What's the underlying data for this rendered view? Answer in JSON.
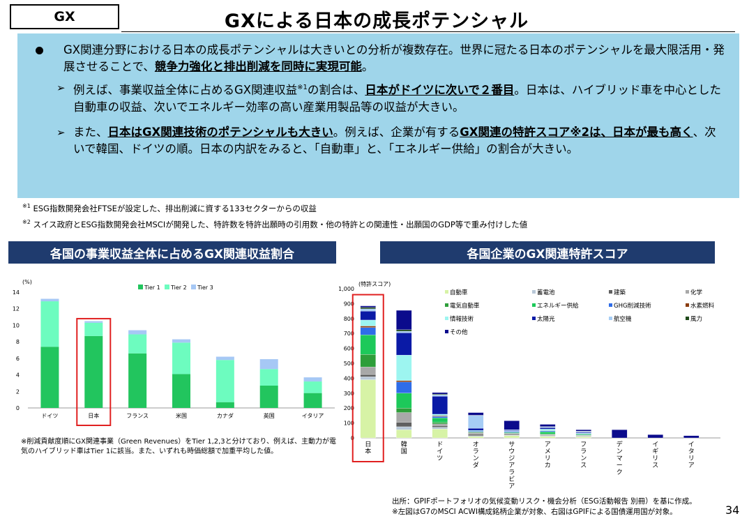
{
  "tag": "GX",
  "title": "GXによる日本の成長ポテンシャル",
  "summary": {
    "bullet": {
      "pre": "GX関連分野における日本の成長ポテンシャルは大きいとの分析が複数存在。世界に冠たる日本のポテンシャルを最大限活用・発展させることで、",
      "em": "競争力強化と排出削減を同時に実現可能",
      "post": "。"
    },
    "sub1": {
      "pre": "例えば、事業収益全体に占めるGX関連収益",
      "sup": "※1",
      "mid": "の割合は、",
      "em": "日本がドイツに次いで２番目",
      "post": "。日本は、ハイブリッド車を中心とした自動車の収益、次いでエネルギー効率の高い産業用製品等の収益が大きい。"
    },
    "sub2": {
      "pre": "また、",
      "em1": "日本はGX関連技術のポテンシャルも大きい",
      "mid": "。例えば、企業が有する",
      "em2": "GX関連の特許スコア※2は、日本が最も高く",
      "post": "、次いで韓国、ドイツの順。日本の内訳をみると、「自動車」と、「エネルギー供給」の割合が大きい。"
    }
  },
  "footnotes": {
    "fn1_mark": "※1",
    "fn1": "ESG指数開発会社FTSEが設定した、排出削減に資する133セクターからの収益",
    "fn2_mark": "※2",
    "fn2": "スイス政府とESG指数開発会社MSCIが開発した、特許数を特許出願時の引用数・他の特許との関連性・出願国のGDP等で重み付けした値"
  },
  "left_header": "各国の事業収益全体に占めるGX関連収益割合",
  "right_header": "各国企業のGX関連特許スコア",
  "left_note": "※削減貢献度順にGX関連事業（Green Revenues）をTier 1,2,3と分けており、例えば、主動力が電気のハイブリッド車はTier 1に該当。また、いずれも時価総額で加重平均した値。",
  "source": {
    "line1": "出所：GPIFポートフォリオの気候変動リスク・機会分析（ESG活動報告 別冊）を基に作成。",
    "line2": "※左図はG7のMSCI ACWI構成銘柄企業が対象、右図はGPIFによる国債運用国が対象。"
  },
  "page_number": "34",
  "chart_data": [
    {
      "type": "bar",
      "stacked": true,
      "ylabel": "(%)",
      "ylim": [
        0,
        14
      ],
      "yticks": [
        0,
        2,
        4,
        6,
        8,
        10,
        12,
        14
      ],
      "categories": [
        "ドイツ",
        "日本",
        "フランス",
        "米国",
        "カナダ",
        "英国",
        "イタリア"
      ],
      "highlight_category": "日本",
      "legend_position": "top",
      "series": [
        {
          "name": "Tier 1",
          "color": "#22c55e",
          "values": [
            7.4,
            8.7,
            6.6,
            4.1,
            0.7,
            2.7,
            1.8
          ]
        },
        {
          "name": "Tier 2",
          "color": "#6dfcbf",
          "values": [
            5.5,
            1.6,
            2.3,
            3.8,
            5.1,
            2.0,
            1.4
          ]
        },
        {
          "name": "Tier 3",
          "color": "#a6c8f5",
          "values": [
            0.3,
            0.2,
            0.5,
            0.4,
            0.4,
            1.2,
            0.5
          ]
        }
      ]
    },
    {
      "type": "bar",
      "stacked": true,
      "ylabel": "(特許スコア)",
      "ylim": [
        0,
        1000
      ],
      "yticks": [
        0,
        100,
        200,
        300,
        400,
        500,
        600,
        700,
        800,
        900,
        1000
      ],
      "ytick_labels": [
        "0",
        "100",
        "200",
        "300",
        "400",
        "500",
        "600",
        "700",
        "800",
        "900",
        "1,000"
      ],
      "categories": [
        "日本",
        "韓国",
        "ドイツ",
        "オランダ",
        "サウジアラビア",
        "アメリカ",
        "フランス",
        "デンマーク",
        "イギリス",
        "イタリア"
      ],
      "highlight_category": "日本",
      "legend_position": "top-right",
      "series": [
        {
          "name": "自動車",
          "color": "#d7f3a6",
          "values": [
            390,
            55,
            60,
            10,
            15,
            10,
            8,
            0,
            0,
            0
          ]
        },
        {
          "name": "蓄電池",
          "color": "#b8c8d8",
          "values": [
            20,
            20,
            12,
            5,
            3,
            4,
            3,
            0,
            0,
            0
          ]
        },
        {
          "name": "建築",
          "color": "#606060",
          "values": [
            15,
            30,
            10,
            10,
            5,
            3,
            3,
            0,
            0,
            0
          ]
        },
        {
          "name": "化学",
          "color": "#a8a8a8",
          "values": [
            50,
            65,
            12,
            10,
            8,
            6,
            4,
            0,
            0,
            0
          ]
        },
        {
          "name": "電気自動車",
          "color": "#2e9e3a",
          "values": [
            85,
            30,
            10,
            5,
            0,
            3,
            2,
            0,
            0,
            0
          ]
        },
        {
          "name": "エネルギー供給",
          "color": "#1dc95a",
          "values": [
            130,
            100,
            30,
            0,
            6,
            15,
            6,
            0,
            0,
            0
          ]
        },
        {
          "name": "GHG削減技術",
          "color": "#2f6de8",
          "values": [
            50,
            75,
            10,
            5,
            5,
            6,
            4,
            0,
            0,
            0
          ]
        },
        {
          "name": "水素燃料",
          "color": "#8a3d10",
          "values": [
            10,
            10,
            5,
            0,
            0,
            2,
            0,
            0,
            0,
            0
          ]
        },
        {
          "name": "情報技術",
          "color": "#9df5f0",
          "values": [
            40,
            170,
            10,
            5,
            3,
            10,
            3,
            0,
            0,
            0
          ]
        },
        {
          "name": "太陽光",
          "color": "#0a1aa6",
          "values": [
            60,
            150,
            120,
            15,
            5,
            10,
            5,
            0,
            0,
            0
          ]
        },
        {
          "name": "航空機",
          "color": "#a6cdf5",
          "values": [
            15,
            10,
            10,
            85,
            5,
            5,
            5,
            0,
            0,
            0
          ]
        },
        {
          "name": "風力",
          "color": "#1f4a1a",
          "values": [
            10,
            10,
            5,
            2,
            0,
            2,
            2,
            0,
            0,
            0
          ]
        },
        {
          "name": "その他",
          "color": "#0b0b8c",
          "values": [
            10,
            130,
            10,
            18,
            60,
            15,
            10,
            55,
            22,
            15
          ]
        }
      ]
    }
  ]
}
